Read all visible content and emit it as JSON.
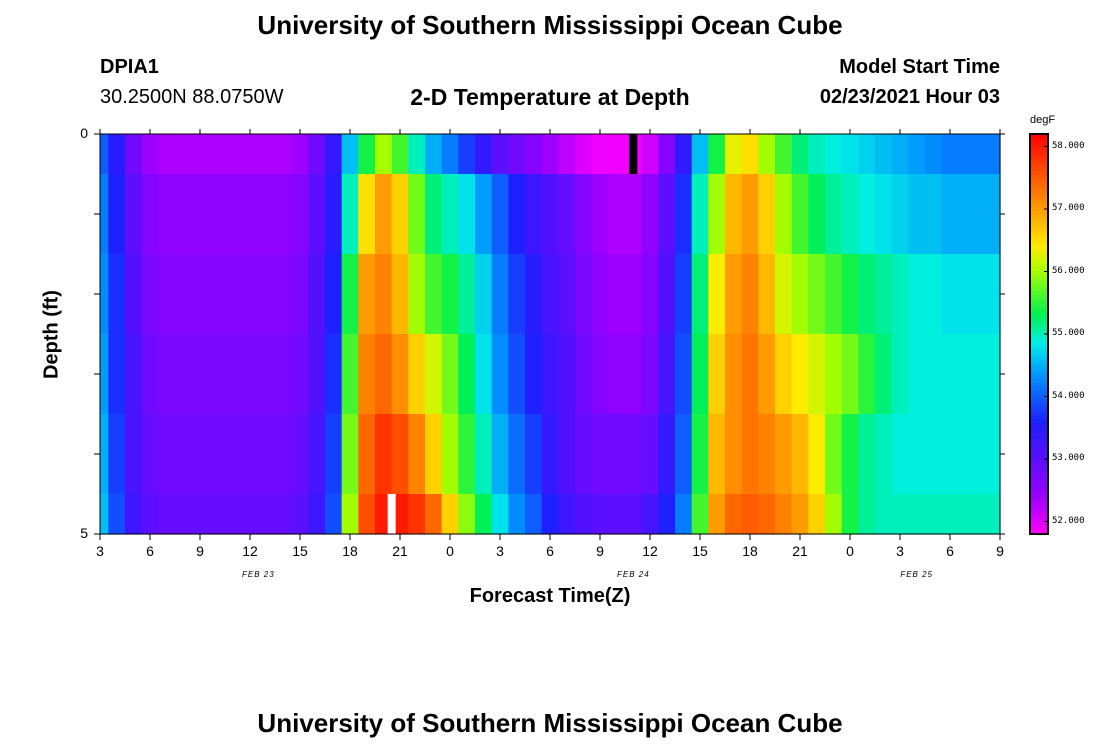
{
  "page": {
    "title_top": "University of Southern Mississippi Ocean Cube",
    "title_bottom": "University of Southern Mississippi Ocean Cube",
    "station": "DPIA1",
    "location": "30.2500N 88.0750W",
    "model_start_label": "Model Start Time",
    "model_start_value": "02/23/2021 Hour 03"
  },
  "chart_data": {
    "type": "heatmap",
    "title": "2-D Temperature at Depth",
    "xlabel": "Forecast Time(Z)",
    "ylabel": "Depth (ft)",
    "units": "degF",
    "x_tick_labels": [
      "3",
      "6",
      "9",
      "12",
      "15",
      "18",
      "21",
      "0",
      "3",
      "6",
      "9",
      "12",
      "15",
      "18",
      "21",
      "0",
      "3",
      "6",
      "9"
    ],
    "day_labels": [
      {
        "text": "FEB 23",
        "hour_index": 9.5
      },
      {
        "text": "FEB 24",
        "hour_index": 32
      },
      {
        "text": "FEB 25",
        "hour_index": 49
      }
    ],
    "x_range_hours": [
      0,
      54
    ],
    "y_range": [
      0,
      5
    ],
    "y_tick_labels": [
      "0",
      "5"
    ],
    "y_minor_ticks": [
      1,
      2,
      3,
      4
    ],
    "depth_layers": 5,
    "colorbar": {
      "min": 51.8,
      "max": 58.2,
      "tick_values": [
        52,
        53,
        54,
        55,
        56,
        57,
        58
      ],
      "tick_labels": [
        "52.000",
        "53.000",
        "54.000",
        "55.000",
        "56.000",
        "57.000",
        "58.000"
      ]
    },
    "times": [
      0,
      1,
      2,
      3,
      4,
      5,
      6,
      7,
      8,
      9,
      10,
      11,
      12,
      13,
      14,
      15,
      16,
      17,
      18,
      19,
      20,
      21,
      22,
      23,
      24,
      25,
      26,
      27,
      28,
      29,
      30,
      31,
      32,
      33,
      34,
      35,
      36,
      37,
      38,
      39,
      40,
      41,
      42,
      43,
      44,
      45,
      46,
      47,
      48,
      49,
      50,
      51,
      52,
      53,
      54
    ],
    "rows": [
      {
        "depth_top": 0,
        "depth_bottom": 0.5,
        "values": [
          54.0,
          53.5,
          52.8,
          52.4,
          52.3,
          52.3,
          52.3,
          52.3,
          52.3,
          52.3,
          52.3,
          52.3,
          52.4,
          52.8,
          53.4,
          54.6,
          55.4,
          56.0,
          55.6,
          55.0,
          54.5,
          54.2,
          53.8,
          53.4,
          53.0,
          52.8,
          52.6,
          52.4,
          52.2,
          52.0,
          51.9,
          51.9,
          51.9,
          52.1,
          52.6,
          53.4,
          54.6,
          55.4,
          56.3,
          56.5,
          56.0,
          55.6,
          55.2,
          55.0,
          54.9,
          54.8,
          54.7,
          54.6,
          54.5,
          54.4,
          54.3,
          54.2,
          54.2,
          54.2,
          54.2
        ]
      },
      {
        "depth_top": 0.5,
        "depth_bottom": 1.5,
        "values": [
          54.2,
          53.6,
          53.0,
          52.6,
          52.5,
          52.5,
          52.5,
          52.5,
          52.5,
          52.5,
          52.5,
          52.5,
          52.6,
          53.0,
          53.5,
          55.0,
          56.5,
          57.0,
          56.6,
          55.8,
          55.2,
          55.0,
          54.8,
          54.4,
          54.0,
          53.6,
          53.3,
          53.1,
          52.9,
          52.6,
          52.4,
          52.3,
          52.3,
          52.5,
          53.0,
          53.7,
          55.0,
          56.0,
          56.8,
          57.0,
          56.6,
          56.0,
          55.6,
          55.3,
          55.1,
          55.0,
          54.9,
          54.8,
          54.7,
          54.6,
          54.6,
          54.5,
          54.5,
          54.5,
          54.5
        ]
      },
      {
        "depth_top": 1.5,
        "depth_bottom": 2.5,
        "values": [
          54.3,
          53.7,
          53.1,
          52.7,
          52.6,
          52.6,
          52.6,
          52.6,
          52.6,
          52.6,
          52.6,
          52.6,
          52.7,
          53.1,
          53.6,
          55.4,
          57.0,
          57.2,
          56.8,
          56.0,
          55.6,
          55.4,
          55.1,
          54.7,
          54.2,
          53.8,
          53.5,
          53.2,
          53.0,
          52.7,
          52.5,
          52.4,
          52.4,
          52.6,
          53.1,
          53.8,
          55.2,
          56.4,
          57.0,
          57.2,
          56.8,
          56.2,
          56.0,
          55.8,
          55.6,
          55.4,
          55.2,
          55.1,
          55.0,
          54.9,
          54.9,
          54.8,
          54.8,
          54.8,
          54.8
        ]
      },
      {
        "depth_top": 2.5,
        "depth_bottom": 3.5,
        "values": [
          54.4,
          53.7,
          53.2,
          52.8,
          52.7,
          52.7,
          52.7,
          52.7,
          52.7,
          52.7,
          52.7,
          52.7,
          52.8,
          53.1,
          53.7,
          55.6,
          57.2,
          57.4,
          57.1,
          56.6,
          56.2,
          55.8,
          55.3,
          54.8,
          54.3,
          53.9,
          53.6,
          53.3,
          53.1,
          52.8,
          52.6,
          52.5,
          52.5,
          52.7,
          53.2,
          53.9,
          55.3,
          56.6,
          57.1,
          57.3,
          57.0,
          56.6,
          56.4,
          56.2,
          56.0,
          55.8,
          55.5,
          55.2,
          55.0,
          54.9,
          54.9,
          54.9,
          54.9,
          54.9,
          54.9
        ]
      },
      {
        "depth_top": 3.5,
        "depth_bottom": 4.5,
        "values": [
          54.5,
          53.8,
          53.2,
          52.9,
          52.8,
          52.8,
          52.8,
          52.8,
          52.8,
          52.8,
          52.8,
          52.8,
          52.9,
          53.2,
          53.8,
          55.8,
          57.4,
          57.8,
          57.6,
          57.2,
          56.6,
          56.0,
          55.5,
          55.0,
          54.5,
          54.1,
          53.8,
          53.4,
          53.1,
          52.9,
          52.8,
          52.8,
          52.8,
          52.9,
          53.4,
          54.0,
          55.4,
          56.8,
          57.1,
          57.3,
          57.2,
          57.0,
          56.8,
          56.4,
          55.8,
          55.4,
          55.1,
          55.0,
          54.9,
          54.9,
          54.9,
          54.9,
          54.9,
          54.9,
          54.9
        ]
      },
      {
        "depth_top": 4.5,
        "depth_bottom": 5,
        "values": [
          54.6,
          53.9,
          53.3,
          53.0,
          52.9,
          52.9,
          52.9,
          52.9,
          52.9,
          52.9,
          52.9,
          52.9,
          53.0,
          53.3,
          53.9,
          56.0,
          57.6,
          58.0,
          58.0,
          57.8,
          57.4,
          56.6,
          55.9,
          55.3,
          54.8,
          54.3,
          54.0,
          53.6,
          53.3,
          53.1,
          53.0,
          53.0,
          53.0,
          53.2,
          53.6,
          54.2,
          55.6,
          57.0,
          57.4,
          57.5,
          57.4,
          57.2,
          57.0,
          56.6,
          56.0,
          55.4,
          55.1,
          55.0,
          55.0,
          55.0,
          55.0,
          55.0,
          55.0,
          55.0,
          55.0
        ]
      }
    ],
    "markers": [
      {
        "color": "#000000",
        "hour": 32,
        "depth_top": 0,
        "depth_bottom": 0.5
      },
      {
        "color": "#ffffff",
        "hour": 17.5,
        "depth_top": 4.5,
        "depth_bottom": 5
      }
    ]
  }
}
